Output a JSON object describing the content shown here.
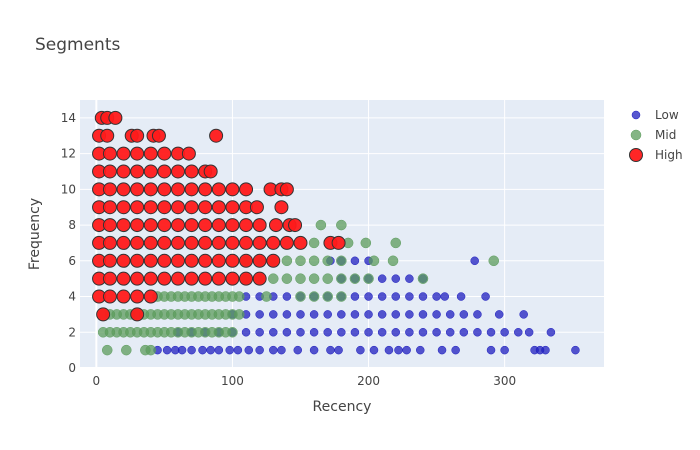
{
  "chart_data": {
    "type": "scatter",
    "title": "Segments",
    "xlabel": "Recency",
    "ylabel": "Frequency",
    "xlim": [
      -12,
      373
    ],
    "ylim": [
      0,
      15
    ],
    "x_ticks": [
      0,
      100,
      200,
      300
    ],
    "y_ticks": [
      0,
      2,
      4,
      6,
      8,
      10,
      12,
      14
    ],
    "grid": true,
    "legend_placement": "top-right",
    "plot_background": "#e5ecf6",
    "series": [
      {
        "name": "Low",
        "color": "#1f1fbf",
        "marker_size": "small",
        "points": [
          [
            45,
            1
          ],
          [
            52,
            1
          ],
          [
            58,
            1
          ],
          [
            63,
            1
          ],
          [
            70,
            1
          ],
          [
            78,
            1
          ],
          [
            84,
            1
          ],
          [
            90,
            1
          ],
          [
            98,
            1
          ],
          [
            104,
            1
          ],
          [
            112,
            1
          ],
          [
            120,
            1
          ],
          [
            130,
            1
          ],
          [
            136,
            1
          ],
          [
            148,
            1
          ],
          [
            160,
            1
          ],
          [
            172,
            1
          ],
          [
            178,
            1
          ],
          [
            194,
            1
          ],
          [
            204,
            1
          ],
          [
            215,
            1
          ],
          [
            222,
            1
          ],
          [
            228,
            1
          ],
          [
            238,
            1
          ],
          [
            254,
            1
          ],
          [
            264,
            1
          ],
          [
            290,
            1
          ],
          [
            300,
            1
          ],
          [
            322,
            1
          ],
          [
            326,
            1
          ],
          [
            330,
            1
          ],
          [
            352,
            1
          ],
          [
            60,
            2
          ],
          [
            70,
            2
          ],
          [
            80,
            2
          ],
          [
            90,
            2
          ],
          [
            100,
            2
          ],
          [
            110,
            2
          ],
          [
            120,
            2
          ],
          [
            130,
            2
          ],
          [
            140,
            2
          ],
          [
            150,
            2
          ],
          [
            160,
            2
          ],
          [
            170,
            2
          ],
          [
            180,
            2
          ],
          [
            190,
            2
          ],
          [
            200,
            2
          ],
          [
            210,
            2
          ],
          [
            220,
            2
          ],
          [
            230,
            2
          ],
          [
            240,
            2
          ],
          [
            250,
            2
          ],
          [
            260,
            2
          ],
          [
            270,
            2
          ],
          [
            280,
            2
          ],
          [
            290,
            2
          ],
          [
            300,
            2
          ],
          [
            310,
            2
          ],
          [
            318,
            2
          ],
          [
            334,
            2
          ],
          [
            100,
            3
          ],
          [
            110,
            3
          ],
          [
            120,
            3
          ],
          [
            130,
            3
          ],
          [
            140,
            3
          ],
          [
            150,
            3
          ],
          [
            160,
            3
          ],
          [
            170,
            3
          ],
          [
            180,
            3
          ],
          [
            190,
            3
          ],
          [
            200,
            3
          ],
          [
            210,
            3
          ],
          [
            220,
            3
          ],
          [
            230,
            3
          ],
          [
            240,
            3
          ],
          [
            250,
            3
          ],
          [
            260,
            3
          ],
          [
            270,
            3
          ],
          [
            280,
            3
          ],
          [
            296,
            3
          ],
          [
            314,
            3
          ],
          [
            110,
            4
          ],
          [
            120,
            4
          ],
          [
            130,
            4
          ],
          [
            140,
            4
          ],
          [
            150,
            4
          ],
          [
            160,
            4
          ],
          [
            170,
            4
          ],
          [
            180,
            4
          ],
          [
            190,
            4
          ],
          [
            200,
            4
          ],
          [
            210,
            4
          ],
          [
            220,
            4
          ],
          [
            230,
            4
          ],
          [
            240,
            4
          ],
          [
            250,
            4
          ],
          [
            256,
            4
          ],
          [
            268,
            4
          ],
          [
            286,
            4
          ],
          [
            180,
            5
          ],
          [
            190,
            5
          ],
          [
            200,
            5
          ],
          [
            210,
            5
          ],
          [
            220,
            5
          ],
          [
            230,
            5
          ],
          [
            240,
            5
          ],
          [
            172,
            6
          ],
          [
            180,
            6
          ],
          [
            190,
            6
          ],
          [
            200,
            6
          ],
          [
            278,
            6
          ]
        ]
      },
      {
        "name": "Mid",
        "color": "#5c9c5c",
        "marker_size": "medium",
        "points": [
          [
            8,
            1
          ],
          [
            22,
            1
          ],
          [
            36,
            1
          ],
          [
            40,
            1
          ],
          [
            5,
            2
          ],
          [
            10,
            2
          ],
          [
            15,
            2
          ],
          [
            20,
            2
          ],
          [
            25,
            2
          ],
          [
            30,
            2
          ],
          [
            35,
            2
          ],
          [
            40,
            2
          ],
          [
            45,
            2
          ],
          [
            50,
            2
          ],
          [
            55,
            2
          ],
          [
            60,
            2
          ],
          [
            65,
            2
          ],
          [
            70,
            2
          ],
          [
            75,
            2
          ],
          [
            80,
            2
          ],
          [
            85,
            2
          ],
          [
            90,
            2
          ],
          [
            95,
            2
          ],
          [
            100,
            2
          ],
          [
            5,
            3
          ],
          [
            10,
            3
          ],
          [
            15,
            3
          ],
          [
            20,
            3
          ],
          [
            25,
            3
          ],
          [
            30,
            3
          ],
          [
            35,
            3
          ],
          [
            40,
            3
          ],
          [
            45,
            3
          ],
          [
            50,
            3
          ],
          [
            55,
            3
          ],
          [
            60,
            3
          ],
          [
            65,
            3
          ],
          [
            70,
            3
          ],
          [
            75,
            3
          ],
          [
            80,
            3
          ],
          [
            85,
            3
          ],
          [
            90,
            3
          ],
          [
            95,
            3
          ],
          [
            100,
            3
          ],
          [
            105,
            3
          ],
          [
            45,
            4
          ],
          [
            50,
            4
          ],
          [
            55,
            4
          ],
          [
            60,
            4
          ],
          [
            65,
            4
          ],
          [
            70,
            4
          ],
          [
            75,
            4
          ],
          [
            80,
            4
          ],
          [
            85,
            4
          ],
          [
            90,
            4
          ],
          [
            95,
            4
          ],
          [
            100,
            4
          ],
          [
            105,
            4
          ],
          [
            125,
            4
          ],
          [
            150,
            4
          ],
          [
            160,
            4
          ],
          [
            170,
            4
          ],
          [
            180,
            4
          ],
          [
            110,
            5
          ],
          [
            120,
            5
          ],
          [
            130,
            5
          ],
          [
            140,
            5
          ],
          [
            150,
            5
          ],
          [
            160,
            5
          ],
          [
            170,
            5
          ],
          [
            180,
            5
          ],
          [
            190,
            5
          ],
          [
            200,
            5
          ],
          [
            240,
            5
          ],
          [
            110,
            6
          ],
          [
            120,
            6
          ],
          [
            130,
            6
          ],
          [
            140,
            6
          ],
          [
            150,
            6
          ],
          [
            160,
            6
          ],
          [
            170,
            6
          ],
          [
            180,
            6
          ],
          [
            204,
            6
          ],
          [
            218,
            6
          ],
          [
            292,
            6
          ],
          [
            160,
            7
          ],
          [
            185,
            7
          ],
          [
            198,
            7
          ],
          [
            220,
            7
          ],
          [
            165,
            8
          ],
          [
            180,
            8
          ]
        ]
      },
      {
        "name": "High",
        "color": "#ff1a1a",
        "marker_size": "large",
        "points": [
          [
            5,
            3
          ],
          [
            30,
            3
          ],
          [
            2,
            4
          ],
          [
            10,
            4
          ],
          [
            20,
            4
          ],
          [
            30,
            4
          ],
          [
            40,
            4
          ],
          [
            2,
            5
          ],
          [
            10,
            5
          ],
          [
            20,
            5
          ],
          [
            30,
            5
          ],
          [
            40,
            5
          ],
          [
            50,
            5
          ],
          [
            60,
            5
          ],
          [
            70,
            5
          ],
          [
            80,
            5
          ],
          [
            90,
            5
          ],
          [
            100,
            5
          ],
          [
            110,
            5
          ],
          [
            120,
            5
          ],
          [
            2,
            6
          ],
          [
            10,
            6
          ],
          [
            20,
            6
          ],
          [
            30,
            6
          ],
          [
            40,
            6
          ],
          [
            50,
            6
          ],
          [
            60,
            6
          ],
          [
            70,
            6
          ],
          [
            80,
            6
          ],
          [
            90,
            6
          ],
          [
            100,
            6
          ],
          [
            110,
            6
          ],
          [
            120,
            6
          ],
          [
            130,
            6
          ],
          [
            2,
            7
          ],
          [
            10,
            7
          ],
          [
            20,
            7
          ],
          [
            30,
            7
          ],
          [
            40,
            7
          ],
          [
            50,
            7
          ],
          [
            60,
            7
          ],
          [
            70,
            7
          ],
          [
            80,
            7
          ],
          [
            90,
            7
          ],
          [
            100,
            7
          ],
          [
            110,
            7
          ],
          [
            120,
            7
          ],
          [
            130,
            7
          ],
          [
            140,
            7
          ],
          [
            150,
            7
          ],
          [
            172,
            7
          ],
          [
            178,
            7
          ],
          [
            2,
            8
          ],
          [
            10,
            8
          ],
          [
            20,
            8
          ],
          [
            30,
            8
          ],
          [
            40,
            8
          ],
          [
            50,
            8
          ],
          [
            60,
            8
          ],
          [
            70,
            8
          ],
          [
            80,
            8
          ],
          [
            90,
            8
          ],
          [
            100,
            8
          ],
          [
            110,
            8
          ],
          [
            120,
            8
          ],
          [
            132,
            8
          ],
          [
            142,
            8
          ],
          [
            146,
            8
          ],
          [
            2,
            9
          ],
          [
            10,
            9
          ],
          [
            20,
            9
          ],
          [
            30,
            9
          ],
          [
            40,
            9
          ],
          [
            50,
            9
          ],
          [
            60,
            9
          ],
          [
            70,
            9
          ],
          [
            80,
            9
          ],
          [
            90,
            9
          ],
          [
            100,
            9
          ],
          [
            110,
            9
          ],
          [
            118,
            9
          ],
          [
            136,
            9
          ],
          [
            2,
            10
          ],
          [
            10,
            10
          ],
          [
            20,
            10
          ],
          [
            30,
            10
          ],
          [
            40,
            10
          ],
          [
            50,
            10
          ],
          [
            60,
            10
          ],
          [
            70,
            10
          ],
          [
            80,
            10
          ],
          [
            90,
            10
          ],
          [
            100,
            10
          ],
          [
            110,
            10
          ],
          [
            128,
            10
          ],
          [
            136,
            10
          ],
          [
            140,
            10
          ],
          [
            2,
            11
          ],
          [
            10,
            11
          ],
          [
            20,
            11
          ],
          [
            30,
            11
          ],
          [
            40,
            11
          ],
          [
            50,
            11
          ],
          [
            60,
            11
          ],
          [
            70,
            11
          ],
          [
            80,
            11
          ],
          [
            84,
            11
          ],
          [
            2,
            12
          ],
          [
            10,
            12
          ],
          [
            20,
            12
          ],
          [
            30,
            12
          ],
          [
            40,
            12
          ],
          [
            50,
            12
          ],
          [
            60,
            12
          ],
          [
            68,
            12
          ],
          [
            2,
            13
          ],
          [
            8,
            13
          ],
          [
            26,
            13
          ],
          [
            30,
            13
          ],
          [
            42,
            13
          ],
          [
            46,
            13
          ],
          [
            88,
            13
          ],
          [
            4,
            14
          ],
          [
            8,
            14
          ],
          [
            14,
            14
          ]
        ]
      }
    ]
  }
}
